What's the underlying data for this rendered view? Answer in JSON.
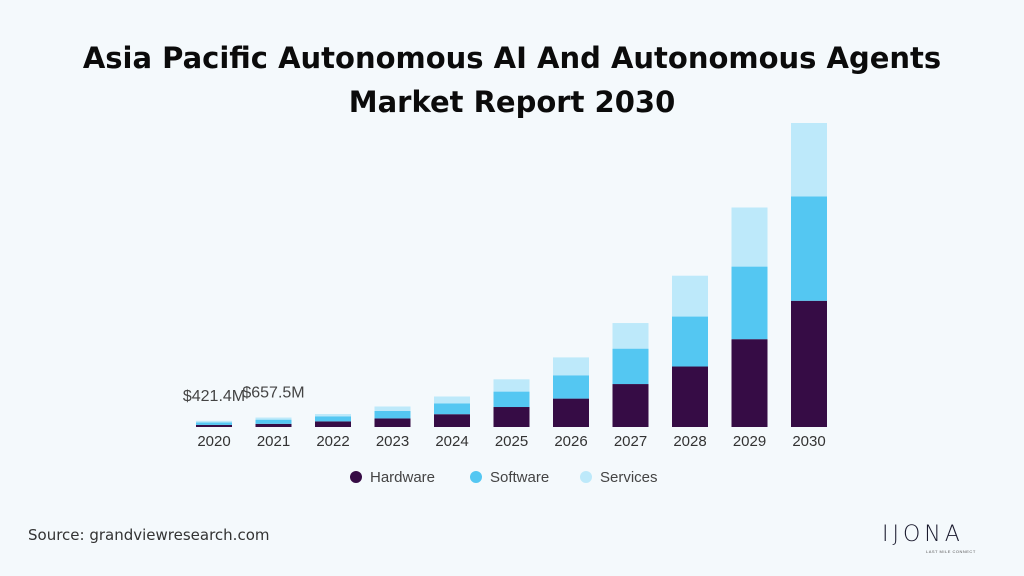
{
  "title_line1": "Asia Pacific Autonomous AI And Autonomous Agents",
  "title_line2": "Market Report 2030",
  "source": "Source: grandviewresearch.com",
  "logo": {
    "word": "IJONA",
    "tagline": "LAST MILE CONNECT"
  },
  "chart_data": {
    "type": "bar",
    "stacked": true,
    "categories": [
      "2020",
      "2021",
      "2022",
      "2023",
      "2024",
      "2025",
      "2026",
      "2027",
      "2028",
      "2029",
      "2030"
    ],
    "series": [
      {
        "name": "Hardware",
        "color": "#360c45",
        "values": [
          1.2,
          1.8,
          3.2,
          4.9,
          7.3,
          11.4,
          16.2,
          24.5,
          34.5,
          50.1,
          72.0
        ]
      },
      {
        "name": "Software",
        "color": "#54c7f2",
        "values": [
          1.4,
          2.4,
          2.9,
          4.3,
          6.2,
          8.8,
          13.3,
          20.2,
          28.5,
          41.4,
          59.5
        ]
      },
      {
        "name": "Services",
        "color": "#bde9fa",
        "values": [
          0.9,
          1.2,
          1.3,
          2.5,
          3.9,
          7.0,
          10.2,
          14.6,
          23.3,
          33.7,
          41.9
        ]
      }
    ],
    "annotations": [
      {
        "category": "2020",
        "label": "$421.4M"
      },
      {
        "category": "2021",
        "label": "$657.5M"
      }
    ],
    "legend_position": "bottom",
    "grid": false
  }
}
